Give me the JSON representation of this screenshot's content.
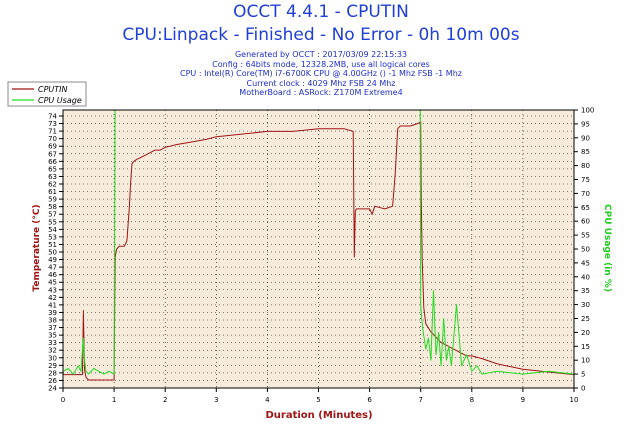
{
  "title": "OCCT 4.4.1 - CPUTIN",
  "subtitle": "CPU:Linpack - Finished - No Error - 0h 10m 00s",
  "info_lines": [
    "Generated by OCCT : 2017/03/09 22:15:33",
    "Config : 64bits mode, 12328.2MB, use all logical cores",
    "CPU : Intel(R) Core(TM) i7-6700K CPU @ 4.00GHz () -1 Mhz FSB -1 Mhz",
    "Current clock : 4029 Mhz FSB 24 Mhz",
    "MotherBoard : ASRock: Z170M Extreme4"
  ],
  "colors": {
    "cputin": "#a01414",
    "cpu_usage": "#22dd22",
    "plot_bg": "#f7ecdc",
    "left_axis": "#a01414",
    "right_axis": "#22cc22",
    "title": "#1f3fd8"
  },
  "chart_data": {
    "type": "line",
    "title": "OCCT 4.4.1 - CPUTIN",
    "xlabel": "Duration (Minutes)",
    "ylabel_left": "Temperature (°C)",
    "ylabel_right": "CPU Usage (in %)",
    "xlim": [
      0,
      10
    ],
    "ylim_left": [
      24,
      76
    ],
    "ylim_right": [
      0,
      100
    ],
    "x_ticks": [
      "0",
      "1",
      "2",
      "3",
      "4",
      "5",
      "6",
      "7",
      "8",
      "9",
      "10"
    ],
    "y_ticks_left": [
      "24",
      "26",
      "28",
      "29",
      "30",
      "32",
      "33",
      "35",
      "37",
      "38",
      "39",
      "41",
      "42",
      "43",
      "45",
      "46",
      "47",
      "49",
      "50",
      "51",
      "53",
      "54",
      "55",
      "57",
      "58",
      "59",
      "61",
      "62",
      "63",
      "65",
      "66",
      "67",
      "69",
      "70",
      "71",
      "73",
      "74"
    ],
    "y_ticks_right": [
      "0",
      "5",
      "10",
      "15",
      "20",
      "25",
      "30",
      "35",
      "40",
      "45",
      "50",
      "55",
      "60",
      "65",
      "70",
      "75",
      "80",
      "85",
      "90",
      "95",
      "100"
    ],
    "grid": true,
    "legend_position": "top-left",
    "series": [
      {
        "name": "CPUTIN",
        "axis": "left",
        "x": [
          0.0,
          0.2,
          0.38,
          0.4,
          0.42,
          0.45,
          0.5,
          1.0,
          1.02,
          1.05,
          1.1,
          1.2,
          1.25,
          1.3,
          1.32,
          1.35,
          1.4,
          1.45,
          1.5,
          1.6,
          1.7,
          1.8,
          1.9,
          2.0,
          2.2,
          2.5,
          2.8,
          3.0,
          3.5,
          4.0,
          4.5,
          5.0,
          5.5,
          5.68,
          5.7,
          5.72,
          5.74,
          5.76,
          5.8,
          6.0,
          6.05,
          6.1,
          6.3,
          6.45,
          6.5,
          6.55,
          6.6,
          6.8,
          6.95,
          7.0,
          7.01,
          7.03,
          7.06,
          7.1,
          7.2,
          7.3,
          7.4,
          7.5,
          7.6,
          7.7,
          7.8,
          7.9,
          8.0,
          8.2,
          8.5,
          9.0,
          9.5,
          10.0
        ],
        "y": [
          26.5,
          26.5,
          26.5,
          38.5,
          27.5,
          26,
          25.5,
          25.5,
          48.5,
          50,
          50.5,
          50.5,
          51.5,
          58,
          62,
          66,
          66.5,
          66.8,
          67,
          67.5,
          68,
          68.5,
          68.5,
          69,
          69.5,
          70,
          70.5,
          71,
          71.5,
          72,
          72,
          72.5,
          72.5,
          72,
          48.5,
          57,
          57.5,
          57.5,
          57.5,
          57.5,
          56.5,
          58,
          57.5,
          58,
          64,
          72.5,
          73,
          73,
          73.5,
          73.8,
          60,
          48,
          39,
          36,
          34.5,
          33.5,
          32.5,
          32,
          31.5,
          31,
          30.5,
          30,
          30,
          29.5,
          28.5,
          27.5,
          27,
          26.5
        ]
      },
      {
        "name": "CPU Usage",
        "axis": "right",
        "x": [
          0.0,
          0.1,
          0.2,
          0.3,
          0.35,
          0.4,
          0.42,
          0.45,
          0.5,
          0.6,
          0.7,
          0.8,
          0.9,
          1.0,
          1.02,
          1.03,
          1.2,
          2.0,
          3.0,
          4.0,
          5.0,
          6.0,
          6.5,
          6.99,
          7.0,
          7.02,
          7.05,
          7.1,
          7.15,
          7.2,
          7.25,
          7.3,
          7.35,
          7.4,
          7.45,
          7.5,
          7.55,
          7.6,
          7.7,
          7.8,
          7.9,
          8.0,
          8.1,
          8.2,
          8.5,
          9.0,
          9.5,
          10.0
        ],
        "y": [
          6,
          7,
          5,
          8,
          6,
          18,
          10,
          6,
          5,
          7,
          6,
          5,
          6,
          5,
          100,
          100,
          100,
          100,
          100,
          100,
          100,
          100,
          100,
          100,
          30,
          25,
          20,
          14,
          18,
          10,
          35,
          12,
          20,
          8,
          25,
          10,
          15,
          8,
          30,
          8,
          12,
          6,
          8,
          5,
          6,
          5,
          6,
          5
        ]
      }
    ]
  }
}
